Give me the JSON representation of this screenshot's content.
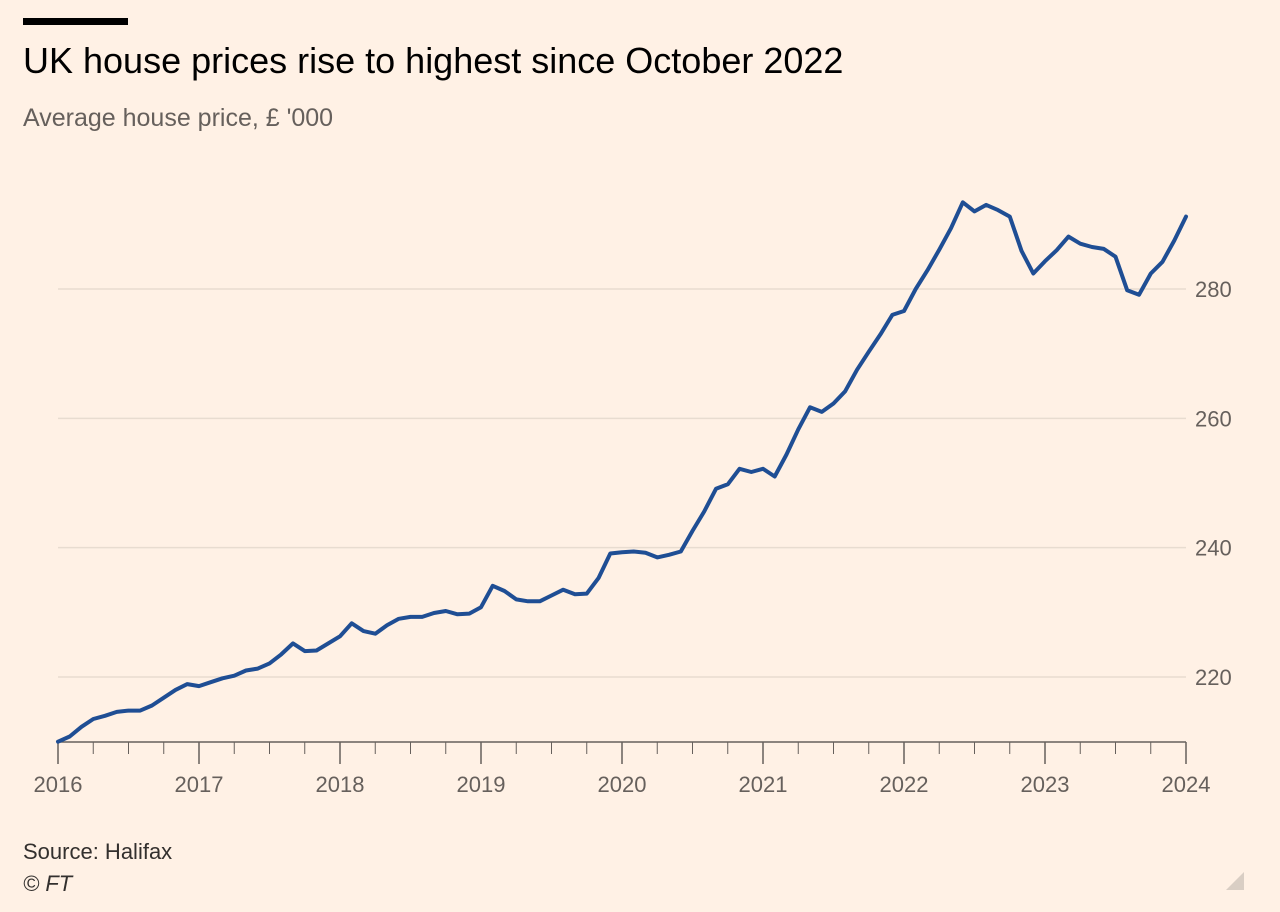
{
  "header": {
    "title": "UK house prices rise to highest since October 2022",
    "subtitle": "Average house price, £ '000"
  },
  "footer": {
    "source": "Source: Halifax",
    "copyright": "© FT"
  },
  "chart_data": {
    "type": "line",
    "title": "UK house prices rise to highest since October 2022",
    "subtitle": "Average house price, £ '000",
    "xlabel": "",
    "ylabel": "",
    "x_range": [
      2016,
      2024
    ],
    "ylim": [
      210,
      295
    ],
    "y_ticks": [
      220,
      240,
      260,
      280
    ],
    "x_ticks": [
      2016,
      2017,
      2018,
      2019,
      2020,
      2021,
      2022,
      2023,
      2024
    ],
    "y_axis_side": "right",
    "grid": true,
    "line_color": "#1f4e94",
    "series": [
      {
        "values": [
          [
            2016.0,
            210.0
          ],
          [
            2016.083,
            210.8
          ],
          [
            2016.167,
            212.3
          ],
          [
            2016.25,
            213.5
          ],
          [
            2016.333,
            214.0
          ],
          [
            2016.417,
            214.6
          ],
          [
            2016.5,
            214.8
          ],
          [
            2016.583,
            214.8
          ],
          [
            2016.667,
            215.6
          ],
          [
            2016.75,
            216.8
          ],
          [
            2016.833,
            218.0
          ],
          [
            2016.917,
            218.9
          ],
          [
            2017.0,
            218.6
          ],
          [
            2017.083,
            219.2
          ],
          [
            2017.167,
            219.8
          ],
          [
            2017.25,
            220.2
          ],
          [
            2017.333,
            221.0
          ],
          [
            2017.417,
            221.3
          ],
          [
            2017.5,
            222.1
          ],
          [
            2017.583,
            223.5
          ],
          [
            2017.667,
            225.2
          ],
          [
            2017.75,
            224.0
          ],
          [
            2017.833,
            224.1
          ],
          [
            2017.917,
            225.2
          ],
          [
            2018.0,
            226.3
          ],
          [
            2018.083,
            228.3
          ],
          [
            2018.167,
            227.1
          ],
          [
            2018.25,
            226.7
          ],
          [
            2018.333,
            228.0
          ],
          [
            2018.417,
            229.0
          ],
          [
            2018.5,
            229.3
          ],
          [
            2018.583,
            229.3
          ],
          [
            2018.667,
            229.9
          ],
          [
            2018.75,
            230.2
          ],
          [
            2018.833,
            229.7
          ],
          [
            2018.917,
            229.8
          ],
          [
            2019.0,
            230.8
          ],
          [
            2019.083,
            234.1
          ],
          [
            2019.167,
            233.3
          ],
          [
            2019.25,
            232.0
          ],
          [
            2019.333,
            231.7
          ],
          [
            2019.417,
            231.7
          ],
          [
            2019.5,
            232.6
          ],
          [
            2019.583,
            233.5
          ],
          [
            2019.667,
            232.8
          ],
          [
            2019.75,
            232.9
          ],
          [
            2019.833,
            235.3
          ],
          [
            2019.917,
            239.1
          ],
          [
            2020.0,
            239.3
          ],
          [
            2020.083,
            239.4
          ],
          [
            2020.167,
            239.2
          ],
          [
            2020.25,
            238.5
          ],
          [
            2020.333,
            238.9
          ],
          [
            2020.417,
            239.4
          ],
          [
            2020.5,
            242.6
          ],
          [
            2020.583,
            245.6
          ],
          [
            2020.667,
            249.1
          ],
          [
            2020.75,
            249.8
          ],
          [
            2020.833,
            252.2
          ],
          [
            2020.917,
            251.7
          ],
          [
            2021.0,
            252.2
          ],
          [
            2021.083,
            251.0
          ],
          [
            2021.167,
            254.4
          ],
          [
            2021.25,
            258.3
          ],
          [
            2021.333,
            261.7
          ],
          [
            2021.417,
            261.0
          ],
          [
            2021.5,
            262.3
          ],
          [
            2021.583,
            264.2
          ],
          [
            2021.667,
            267.5
          ],
          [
            2021.75,
            270.3
          ],
          [
            2021.833,
            273.0
          ],
          [
            2021.917,
            276.0
          ],
          [
            2022.0,
            276.6
          ],
          [
            2022.083,
            280.0
          ],
          [
            2022.167,
            282.9
          ],
          [
            2022.25,
            286.1
          ],
          [
            2022.333,
            289.4
          ],
          [
            2022.417,
            293.4
          ],
          [
            2022.5,
            292.0
          ],
          [
            2022.583,
            293.0
          ],
          [
            2022.667,
            292.2
          ],
          [
            2022.75,
            291.2
          ],
          [
            2022.833,
            285.9
          ],
          [
            2022.917,
            282.4
          ],
          [
            2023.0,
            284.3
          ],
          [
            2023.083,
            286.0
          ],
          [
            2023.167,
            288.1
          ],
          [
            2023.25,
            287.0
          ],
          [
            2023.333,
            286.5
          ],
          [
            2023.417,
            286.2
          ],
          [
            2023.5,
            285.0
          ],
          [
            2023.583,
            279.8
          ],
          [
            2023.667,
            279.1
          ],
          [
            2023.75,
            282.4
          ],
          [
            2023.833,
            284.2
          ],
          [
            2023.917,
            287.5
          ],
          [
            2024.0,
            291.2
          ]
        ]
      }
    ]
  }
}
